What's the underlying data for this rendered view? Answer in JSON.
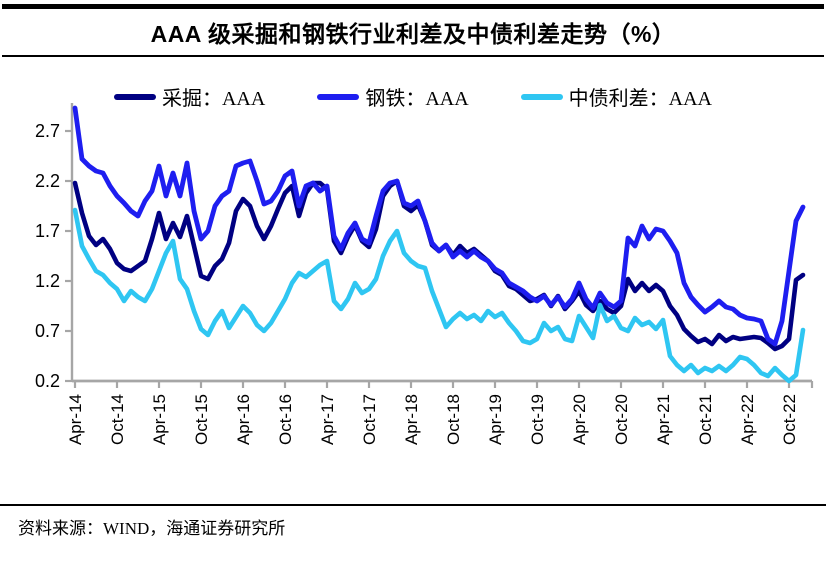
{
  "title": "AAA 级采掘和钢铁行业利差及中债利差走势（%）",
  "source": "资料来源：WIND，海通证券研究所",
  "legend": [
    {
      "label": "采掘：AAA",
      "color": "#000082"
    },
    {
      "label": "钢铁：AAA",
      "color": "#1e1ef0"
    },
    {
      "label": "中债利差：AAA",
      "color": "#2fc6f2"
    }
  ],
  "chart_data": {
    "type": "line",
    "title": "AAA 级采掘和钢铁行业利差及中债利差走势（%）",
    "xlabel": "",
    "ylabel": "",
    "ylim": [
      0.2,
      2.95
    ],
    "yticks": [
      "2.7",
      "2.2",
      "1.7",
      "1.2",
      "0.7",
      "0.2"
    ],
    "ytick_values": [
      2.7,
      2.2,
      1.7,
      1.2,
      0.7,
      0.2
    ],
    "x_tick_labels": [
      "Apr-14",
      "Oct-14",
      "Apr-15",
      "Oct-15",
      "Apr-16",
      "Oct-16",
      "Apr-17",
      "Oct-17",
      "Apr-18",
      "Oct-18",
      "Apr-19",
      "Oct-19",
      "Apr-20",
      "Oct-20",
      "Apr-21",
      "Oct-21",
      "Apr-22",
      "Oct-22"
    ],
    "x_frequency": "monthly",
    "x_range": "Apr-2014 to Dec-2022",
    "x_ticks_every_n_months": 6,
    "grid": false,
    "legend_position": "top",
    "axis_color": "#a6a6a6",
    "series": [
      {
        "name": "采掘：AAA",
        "color": "#000082",
        "width": 4.6,
        "values": [
          2.18,
          1.88,
          1.65,
          1.56,
          1.62,
          1.52,
          1.38,
          1.32,
          1.3,
          1.35,
          1.4,
          1.62,
          1.88,
          1.62,
          1.78,
          1.64,
          1.85,
          1.55,
          1.25,
          1.22,
          1.35,
          1.42,
          1.58,
          1.9,
          2.02,
          1.95,
          1.75,
          1.62,
          1.75,
          1.92,
          2.08,
          2.15,
          1.85,
          2.08,
          2.18,
          2.18,
          2.12,
          1.6,
          1.48,
          1.64,
          1.76,
          1.6,
          1.54,
          1.72,
          2.05,
          2.15,
          2.2,
          1.95,
          1.9,
          1.96,
          1.8,
          1.56,
          1.5,
          1.56,
          1.46,
          1.55,
          1.48,
          1.52,
          1.46,
          1.4,
          1.3,
          1.26,
          1.15,
          1.12,
          1.06,
          1.0,
          1.02,
          1.06,
          0.95,
          1.05,
          0.92,
          1.0,
          1.1,
          0.96,
          0.9,
          1.0,
          0.92,
          0.88,
          0.95,
          1.22,
          1.1,
          1.18,
          1.1,
          1.16,
          1.1,
          0.95,
          0.86,
          0.72,
          0.65,
          0.59,
          0.62,
          0.57,
          0.66,
          0.6,
          0.64,
          0.62,
          0.63,
          0.64,
          0.63,
          0.58,
          0.52,
          0.55,
          0.62,
          1.21,
          1.26
        ]
      },
      {
        "name": "钢铁：AAA",
        "color": "#1e1ef0",
        "width": 4.8,
        "values": [
          2.93,
          2.42,
          2.35,
          2.3,
          2.28,
          2.15,
          2.05,
          1.98,
          1.9,
          1.85,
          2.0,
          2.1,
          2.35,
          2.05,
          2.28,
          2.05,
          2.38,
          1.9,
          1.62,
          1.7,
          1.95,
          2.05,
          2.1,
          2.35,
          2.38,
          2.4,
          2.2,
          1.97,
          2.0,
          2.1,
          2.25,
          2.3,
          1.95,
          2.15,
          2.18,
          2.1,
          2.15,
          1.65,
          1.52,
          1.68,
          1.78,
          1.62,
          1.58,
          1.85,
          2.1,
          2.18,
          2.2,
          1.98,
          1.95,
          2.0,
          1.8,
          1.58,
          1.5,
          1.56,
          1.44,
          1.5,
          1.44,
          1.5,
          1.44,
          1.4,
          1.32,
          1.28,
          1.18,
          1.14,
          1.1,
          1.04,
          1.0,
          1.05,
          0.96,
          1.04,
          0.94,
          1.02,
          1.18,
          1.02,
          0.93,
          1.08,
          0.98,
          0.94,
          1.0,
          1.63,
          1.55,
          1.75,
          1.62,
          1.72,
          1.7,
          1.6,
          1.48,
          1.18,
          1.04,
          0.96,
          0.89,
          0.94,
          1.0,
          0.94,
          0.92,
          0.86,
          0.83,
          0.82,
          0.8,
          0.62,
          0.57,
          0.8,
          1.3,
          1.8,
          1.94
        ]
      },
      {
        "name": "中债利差：AAA",
        "color": "#2fc6f2",
        "width": 4.6,
        "values": [
          1.91,
          1.55,
          1.42,
          1.3,
          1.26,
          1.18,
          1.12,
          1.0,
          1.1,
          1.04,
          1.0,
          1.12,
          1.3,
          1.48,
          1.6,
          1.22,
          1.12,
          0.9,
          0.72,
          0.66,
          0.8,
          0.9,
          0.73,
          0.84,
          0.95,
          0.88,
          0.76,
          0.7,
          0.78,
          0.9,
          1.02,
          1.18,
          1.28,
          1.24,
          1.3,
          1.36,
          1.4,
          1.0,
          0.92,
          1.02,
          1.18,
          1.08,
          1.12,
          1.22,
          1.45,
          1.6,
          1.7,
          1.48,
          1.4,
          1.35,
          1.33,
          1.1,
          0.92,
          0.74,
          0.82,
          0.88,
          0.82,
          0.86,
          0.8,
          0.9,
          0.84,
          0.88,
          0.78,
          0.7,
          0.6,
          0.58,
          0.62,
          0.78,
          0.7,
          0.74,
          0.62,
          0.6,
          0.85,
          0.74,
          0.63,
          0.96,
          0.8,
          0.85,
          0.73,
          0.7,
          0.83,
          0.76,
          0.79,
          0.72,
          0.81,
          0.45,
          0.36,
          0.3,
          0.36,
          0.28,
          0.33,
          0.3,
          0.35,
          0.3,
          0.36,
          0.44,
          0.42,
          0.36,
          0.28,
          0.25,
          0.33,
          0.26,
          0.2,
          0.26,
          0.71
        ]
      }
    ]
  }
}
